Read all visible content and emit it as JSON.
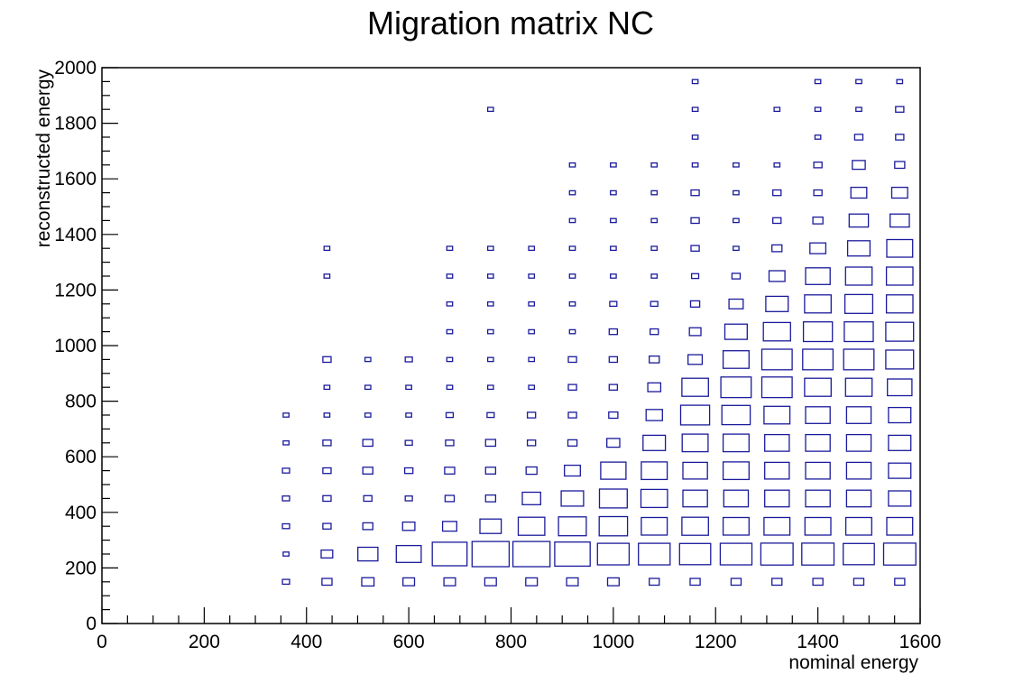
{
  "chart_data": {
    "type": "heatmap",
    "style": "box",
    "title": "Migration matrix NC",
    "xlabel": "nominal energy",
    "ylabel": "reconstructed energy",
    "xlim": [
      0,
      1600
    ],
    "ylim": [
      0,
      2000
    ],
    "x_ticks": [
      "0",
      "200",
      "400",
      "600",
      "800",
      "1000",
      "1200",
      "1400",
      "1600"
    ],
    "y_ticks": [
      "0",
      "200",
      "400",
      "600",
      "800",
      "1000",
      "1200",
      "1400",
      "1600",
      "1800",
      "2000"
    ],
    "grid": false,
    "box_color": "#1a1a9c",
    "x_centers": [
      280,
      360,
      440,
      520,
      600,
      680,
      760,
      840,
      920,
      1000,
      1080,
      1160,
      1240,
      1320,
      1400,
      1480,
      1560
    ],
    "y_centers": [
      150,
      250,
      350,
      450,
      550,
      650,
      750,
      850,
      950,
      1050,
      1150,
      1250,
      1350,
      1450,
      1550,
      1650,
      1750,
      1850,
      1950
    ],
    "values": [
      [
        0,
        0,
        0,
        0,
        0,
        0,
        0,
        0,
        0,
        0,
        0,
        0,
        0,
        0,
        0,
        0,
        0,
        0,
        0
      ],
      [
        0.03,
        0.02,
        0.03,
        0.03,
        0.03,
        0.02,
        0.02,
        0,
        0,
        0,
        0,
        0,
        0,
        0,
        0,
        0,
        0,
        0,
        0
      ],
      [
        0.06,
        0.08,
        0.04,
        0.04,
        0.04,
        0.04,
        0.02,
        0.02,
        0.04,
        0,
        0,
        0.02,
        0.02,
        0,
        0,
        0,
        0,
        0,
        0
      ],
      [
        0.09,
        0.24,
        0.06,
        0.04,
        0.06,
        0.06,
        0.02,
        0.02,
        0.02,
        0,
        0,
        0,
        0,
        0,
        0,
        0,
        0,
        0,
        0
      ],
      [
        0.08,
        0.37,
        0.09,
        0.03,
        0.04,
        0.03,
        0.02,
        0.02,
        0.03,
        0,
        0,
        0,
        0,
        0,
        0,
        0,
        0,
        0,
        0
      ],
      [
        0.08,
        0.72,
        0.12,
        0.05,
        0.06,
        0.04,
        0.03,
        0.02,
        0.02,
        0.02,
        0.02,
        0.02,
        0.02,
        0,
        0,
        0,
        0,
        0,
        0
      ],
      [
        0.08,
        0.82,
        0.27,
        0.06,
        0.06,
        0.06,
        0.03,
        0.02,
        0.02,
        0.02,
        0.02,
        0.02,
        0.02,
        0,
        0,
        0,
        0,
        0.02,
        0
      ],
      [
        0.08,
        0.82,
        0.42,
        0.2,
        0.07,
        0.04,
        0.04,
        0.02,
        0.02,
        0.02,
        0.02,
        0.02,
        0.02,
        0,
        0,
        0,
        0,
        0,
        0
      ],
      [
        0.08,
        0.75,
        0.46,
        0.3,
        0.15,
        0.05,
        0.04,
        0.04,
        0.04,
        0.02,
        0.02,
        0.02,
        0.02,
        0.02,
        0.02,
        0.02,
        0,
        0,
        0
      ],
      [
        0.08,
        0.6,
        0.48,
        0.46,
        0.38,
        0.1,
        0.05,
        0.04,
        0.04,
        0.04,
        0.03,
        0.02,
        0.02,
        0.02,
        0.02,
        0.02,
        0,
        0,
        0
      ],
      [
        0.06,
        0.6,
        0.4,
        0.42,
        0.4,
        0.3,
        0.16,
        0.1,
        0.06,
        0.04,
        0.03,
        0.02,
        0.02,
        0.02,
        0.02,
        0.02,
        0,
        0,
        0
      ],
      [
        0.06,
        0.58,
        0.42,
        0.36,
        0.36,
        0.4,
        0.5,
        0.42,
        0.12,
        0.08,
        0.05,
        0.03,
        0.04,
        0.04,
        0.04,
        0.02,
        0.02,
        0.02,
        0.02
      ],
      [
        0.06,
        0.6,
        0.4,
        0.36,
        0.4,
        0.4,
        0.48,
        0.55,
        0.4,
        0.3,
        0.12,
        0.04,
        0.02,
        0.02,
        0.02,
        0.02,
        0,
        0,
        0
      ],
      [
        0.06,
        0.62,
        0.4,
        0.36,
        0.36,
        0.36,
        0.4,
        0.55,
        0.55,
        0.44,
        0.3,
        0.15,
        0.06,
        0.04,
        0.04,
        0.02,
        0,
        0.02,
        0
      ],
      [
        0.06,
        0.62,
        0.4,
        0.36,
        0.36,
        0.36,
        0.36,
        0.42,
        0.55,
        0.5,
        0.42,
        0.36,
        0.15,
        0.06,
        0.04,
        0.04,
        0.02,
        0.02,
        0.02
      ],
      [
        0.06,
        0.58,
        0.4,
        0.36,
        0.36,
        0.36,
        0.36,
        0.42,
        0.55,
        0.5,
        0.46,
        0.42,
        0.3,
        0.22,
        0.15,
        0.1,
        0.04,
        0.02,
        0.02
      ],
      [
        0.06,
        0.62,
        0.4,
        0.3,
        0.3,
        0.3,
        0.3,
        0.36,
        0.46,
        0.46,
        0.42,
        0.42,
        0.4,
        0.22,
        0.15,
        0.06,
        0.04,
        0.04,
        0.02
      ]
    ]
  }
}
